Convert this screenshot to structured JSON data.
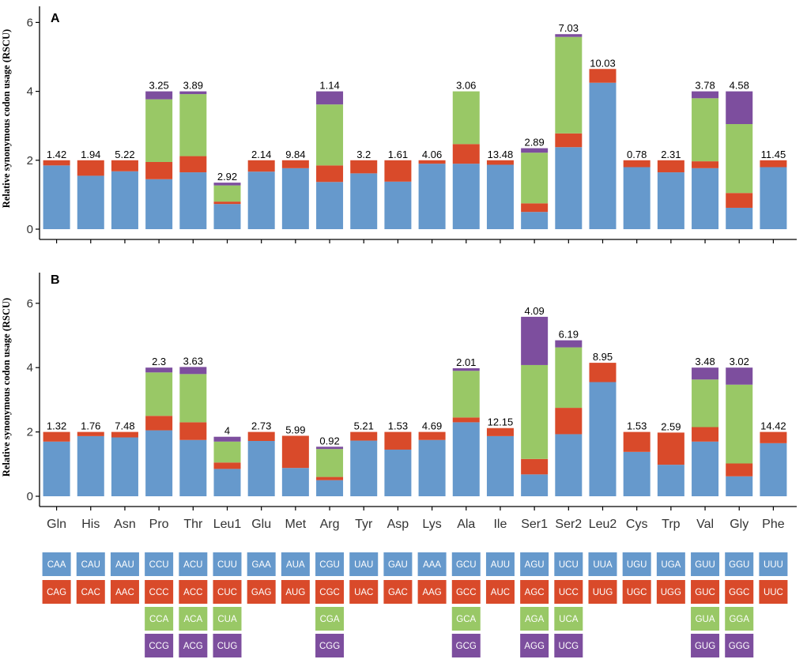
{
  "colors": {
    "pos1": "#6699CC",
    "pos2": "#D94A2A",
    "pos3": "#99C866",
    "pos4": "#7D4E9E",
    "axis": "#000000"
  },
  "chart_data": [
    {
      "type": "bar",
      "stacked": true,
      "panel_label": "A",
      "ylabel": "Relative synonymous codon usage (RSCU)",
      "ylim": [
        0,
        6
      ],
      "yticks": [
        "0",
        "2",
        "4",
        "6"
      ],
      "categories": [
        "Gln",
        "His",
        "Asn",
        "Pro",
        "Thr",
        "Leu1",
        "Glu",
        "Met",
        "Arg",
        "Tyr",
        "Asp",
        "Lys",
        "Ala",
        "Ile",
        "Ser1",
        "Ser2",
        "Leu2",
        "Cys",
        "Trp",
        "Val",
        "Gly",
        "Phe"
      ],
      "series": [
        {
          "name": "codon 1",
          "values": [
            1.85,
            1.55,
            1.68,
            1.45,
            1.65,
            0.73,
            1.67,
            1.77,
            1.37,
            1.62,
            1.38,
            1.9,
            1.9,
            1.87,
            0.5,
            2.38,
            4.25,
            1.8,
            1.65,
            1.77,
            0.62,
            1.8
          ]
        },
        {
          "name": "codon 2",
          "values": [
            0.15,
            0.45,
            0.32,
            0.5,
            0.47,
            0.07,
            0.33,
            0.23,
            0.48,
            0.38,
            0.62,
            0.1,
            0.57,
            0.13,
            0.25,
            0.4,
            0.4,
            0.2,
            0.35,
            0.2,
            0.43,
            0.2
          ]
        },
        {
          "name": "codon 3",
          "values": [
            0,
            0,
            0,
            1.82,
            1.8,
            0.47,
            0,
            0,
            1.77,
            0,
            0,
            0,
            1.53,
            0,
            1.47,
            2.8,
            0,
            0,
            0,
            1.83,
            2.0,
            0
          ]
        },
        {
          "name": "codon 4",
          "values": [
            0,
            0,
            0,
            0.23,
            0.08,
            0.08,
            0,
            0,
            0.38,
            0,
            0,
            0,
            0,
            0,
            0.13,
            0.08,
            0,
            0,
            0,
            0.2,
            0.95,
            0
          ]
        }
      ],
      "labels": [
        "1.42",
        "1.94",
        "5.22",
        "3.25",
        "3.89",
        "2.92",
        "2.14",
        "9.84",
        "1.14",
        "3.2",
        "1.61",
        "4.06",
        "3.06",
        "13.48",
        "2.89",
        "7.03",
        "10.03",
        "0.78",
        "2.31",
        "3.78",
        "4.58",
        "11.45"
      ]
    },
    {
      "type": "bar",
      "stacked": true,
      "panel_label": "B",
      "ylabel": "Relative synonymous codon usage (RSCU)",
      "ylim": [
        0,
        6
      ],
      "yticks": [
        "0",
        "2",
        "4",
        "6"
      ],
      "categories": [
        "Gln",
        "His",
        "Asn",
        "Pro",
        "Thr",
        "Leu1",
        "Glu",
        "Met",
        "Arg",
        "Tyr",
        "Asp",
        "Lys",
        "Ala",
        "Ile",
        "Ser1",
        "Ser2",
        "Leu2",
        "Cys",
        "Trp",
        "Val",
        "Gly",
        "Phe"
      ],
      "series": [
        {
          "name": "codon 1",
          "values": [
            1.7,
            1.87,
            1.83,
            2.05,
            1.75,
            0.85,
            1.72,
            0.88,
            0.5,
            1.73,
            1.45,
            1.75,
            2.3,
            1.87,
            0.68,
            1.93,
            3.55,
            1.38,
            0.98,
            1.7,
            0.62,
            1.65
          ]
        },
        {
          "name": "codon 2",
          "values": [
            0.3,
            0.13,
            0.17,
            0.45,
            0.55,
            0.2,
            0.28,
            1.0,
            0.1,
            0.27,
            0.55,
            0.25,
            0.15,
            0.25,
            0.48,
            0.82,
            0.6,
            0.62,
            1.0,
            0.45,
            0.4,
            0.35
          ]
        },
        {
          "name": "codon 3",
          "values": [
            0,
            0,
            0,
            1.35,
            1.5,
            0.65,
            0,
            0,
            0.87,
            0,
            0,
            0,
            1.45,
            0,
            2.92,
            1.88,
            0,
            0,
            0,
            1.48,
            2.45,
            0
          ]
        },
        {
          "name": "codon 4",
          "values": [
            0,
            0,
            0,
            0.15,
            0.22,
            0.15,
            0,
            0,
            0.07,
            0,
            0,
            0,
            0.08,
            0,
            1.5,
            0.22,
            0,
            0,
            0,
            0.37,
            0.53,
            0
          ]
        }
      ],
      "labels": [
        "1.32",
        "1.76",
        "7.48",
        "2.3",
        "3.63",
        "4",
        "2.73",
        "5.99",
        "0.92",
        "5.21",
        "1.53",
        "4.69",
        "2.01",
        "12.15",
        "4.09",
        "6.19",
        "8.95",
        "1.53",
        "2.59",
        "3.48",
        "3.02",
        "14.42"
      ]
    }
  ],
  "codon_table": [
    [
      "CAA",
      "CAG"
    ],
    [
      "CAU",
      "CAC"
    ],
    [
      "AAU",
      "AAC"
    ],
    [
      "CCU",
      "CCC",
      "CCA",
      "CCG"
    ],
    [
      "ACU",
      "ACC",
      "ACA",
      "ACG"
    ],
    [
      "CUU",
      "CUC",
      "CUA",
      "CUG"
    ],
    [
      "GAA",
      "GAG"
    ],
    [
      "AUA",
      "AUG"
    ],
    [
      "CGU",
      "CGC",
      "CGA",
      "CGG"
    ],
    [
      "UAU",
      "UAC"
    ],
    [
      "GAU",
      "GAC"
    ],
    [
      "AAA",
      "AAG"
    ],
    [
      "GCU",
      "GCC",
      "GCA",
      "GCG"
    ],
    [
      "AUU",
      "AUC"
    ],
    [
      "AGU",
      "AGC",
      "AGA",
      "AGG"
    ],
    [
      "UCU",
      "UCC",
      "UCA",
      "UCG"
    ],
    [
      "UUA",
      "UUG"
    ],
    [
      "UGU",
      "UGC"
    ],
    [
      "UGA",
      "UGG"
    ],
    [
      "GUU",
      "GUC",
      "GUA",
      "GUG"
    ],
    [
      "GGU",
      "GGC",
      "GGA",
      "GGG"
    ],
    [
      "UUU",
      "UUC"
    ]
  ]
}
